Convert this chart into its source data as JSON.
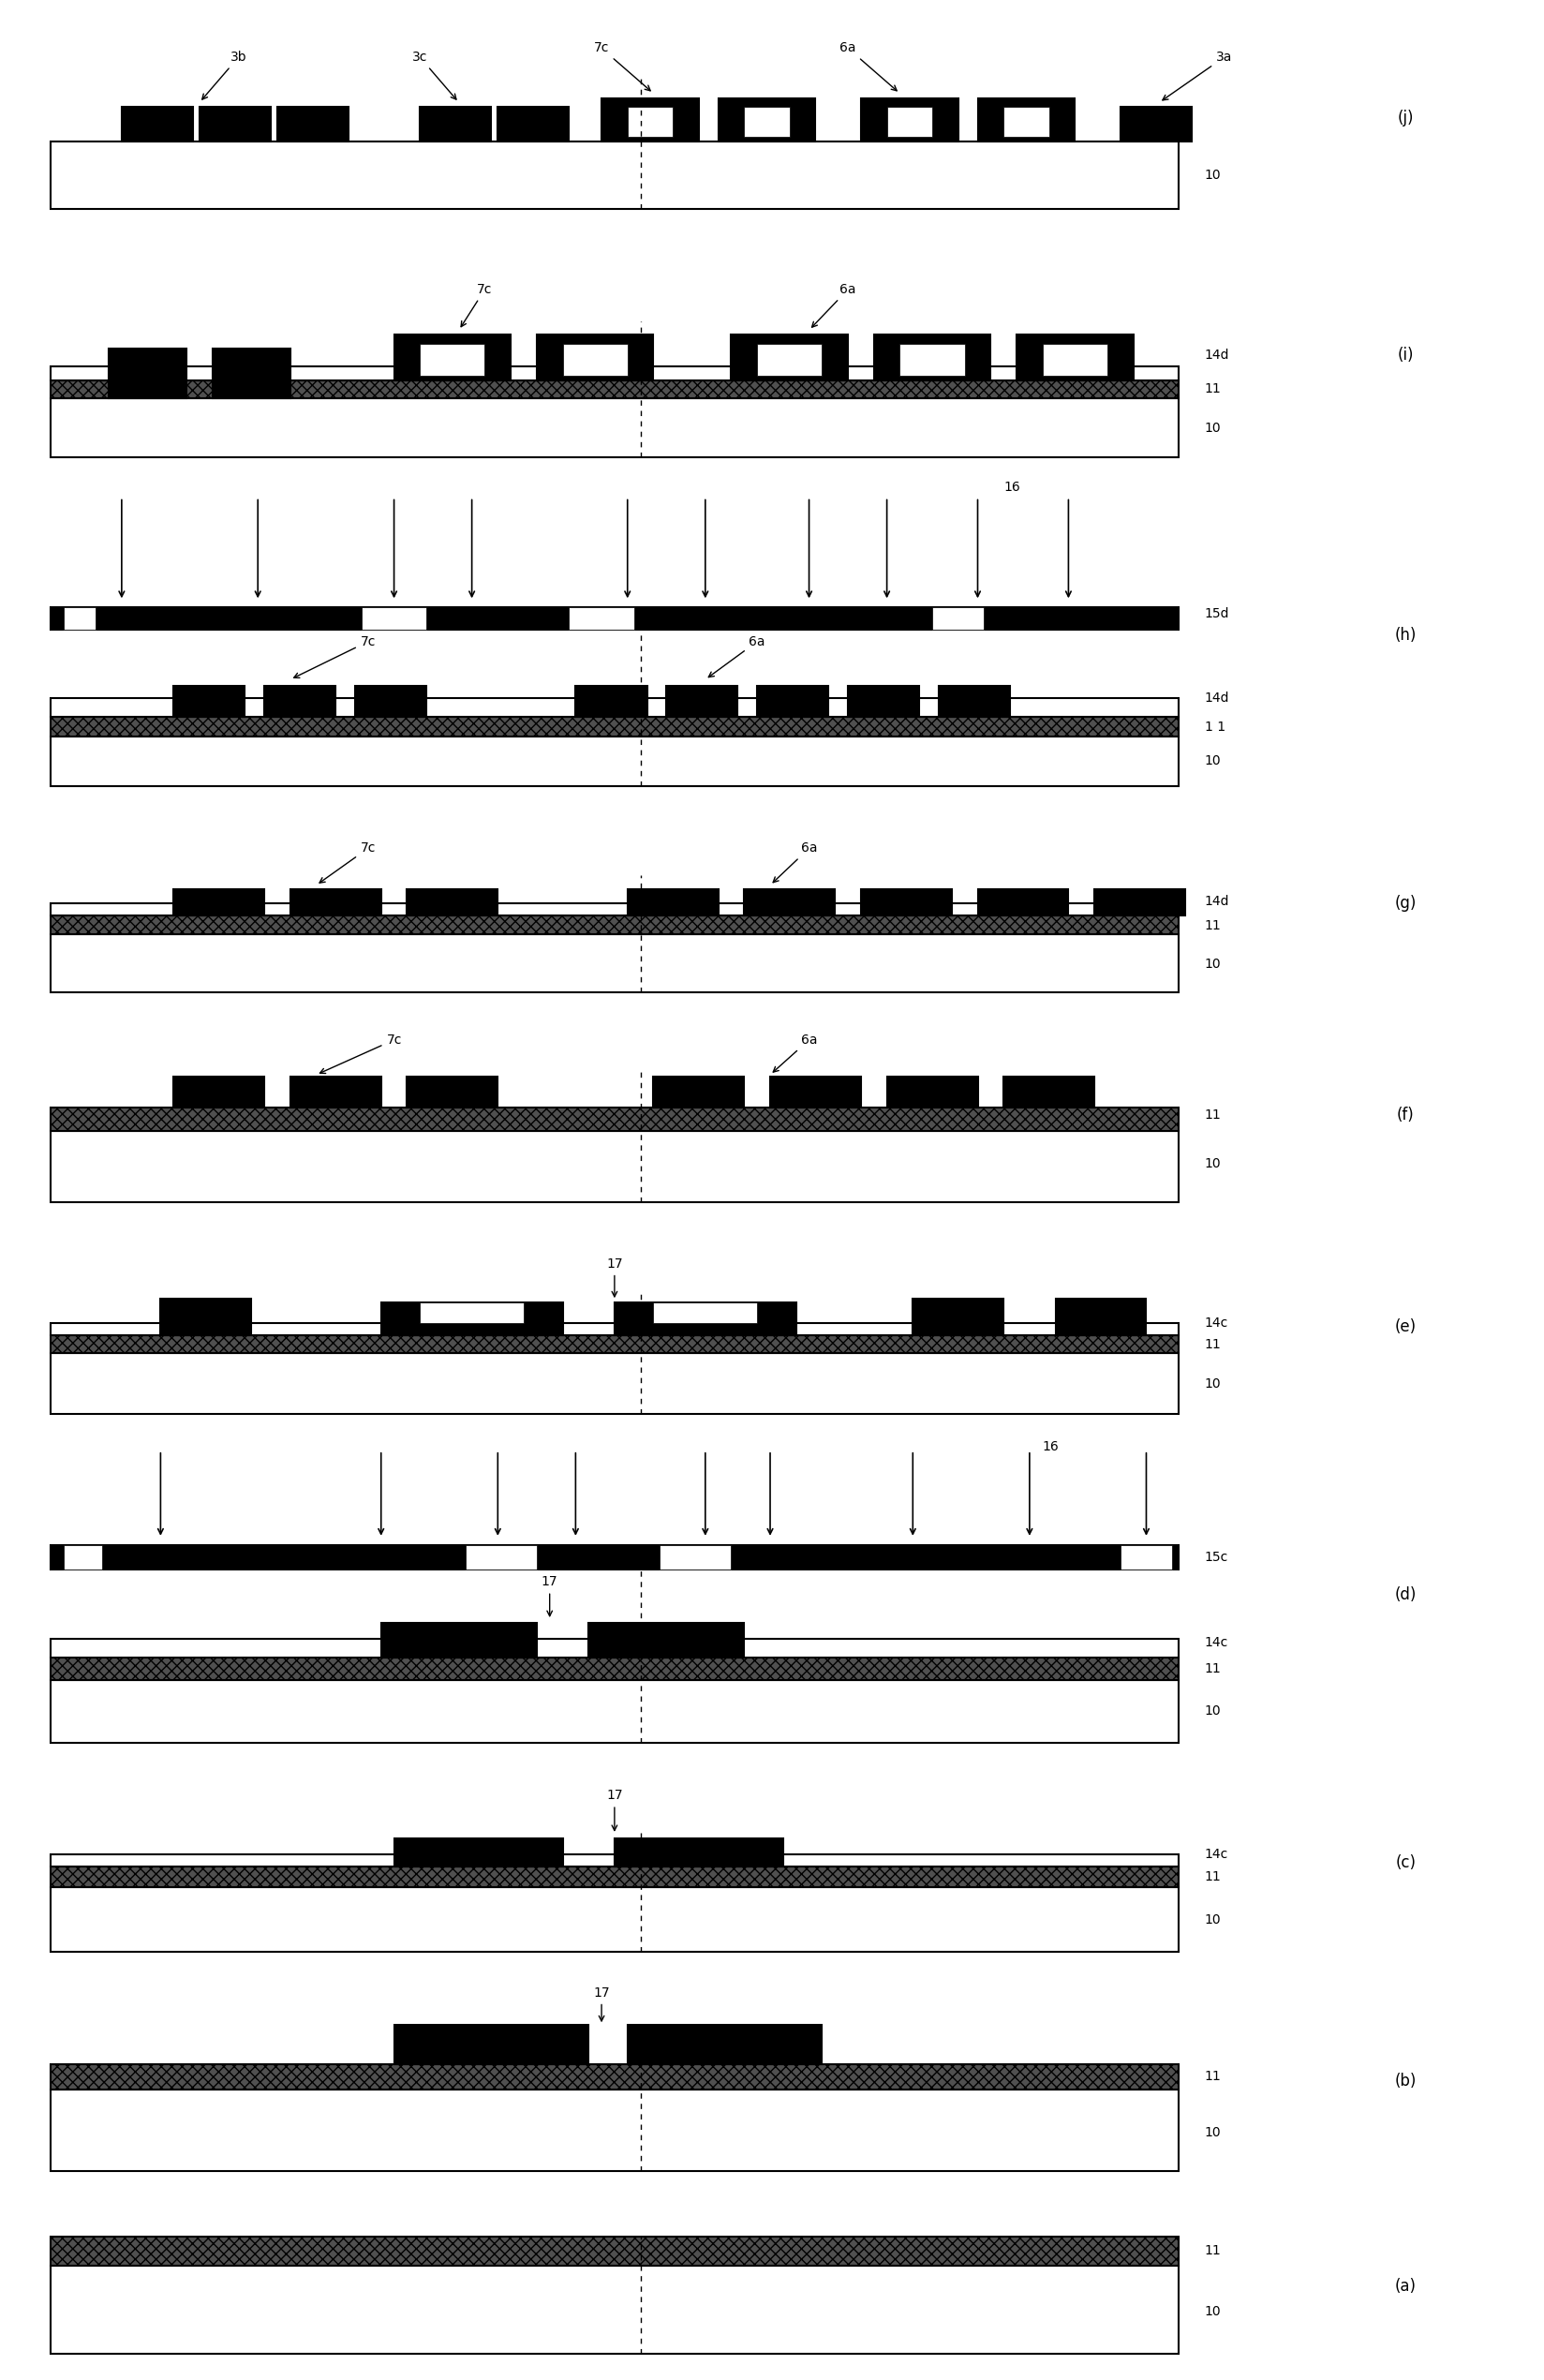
{
  "figure_width": 16.48,
  "figure_height": 25.4,
  "bg": "#ffffff",
  "BLACK": "#000000",
  "WHITE": "#ffffff",
  "HATCH_COLOR": "#505050",
  "panel_labels": [
    "(a)",
    "(b)",
    "(c)",
    "(d)",
    "(e)",
    "(f)",
    "(g)",
    "(h)",
    "(i)",
    "(j)"
  ]
}
